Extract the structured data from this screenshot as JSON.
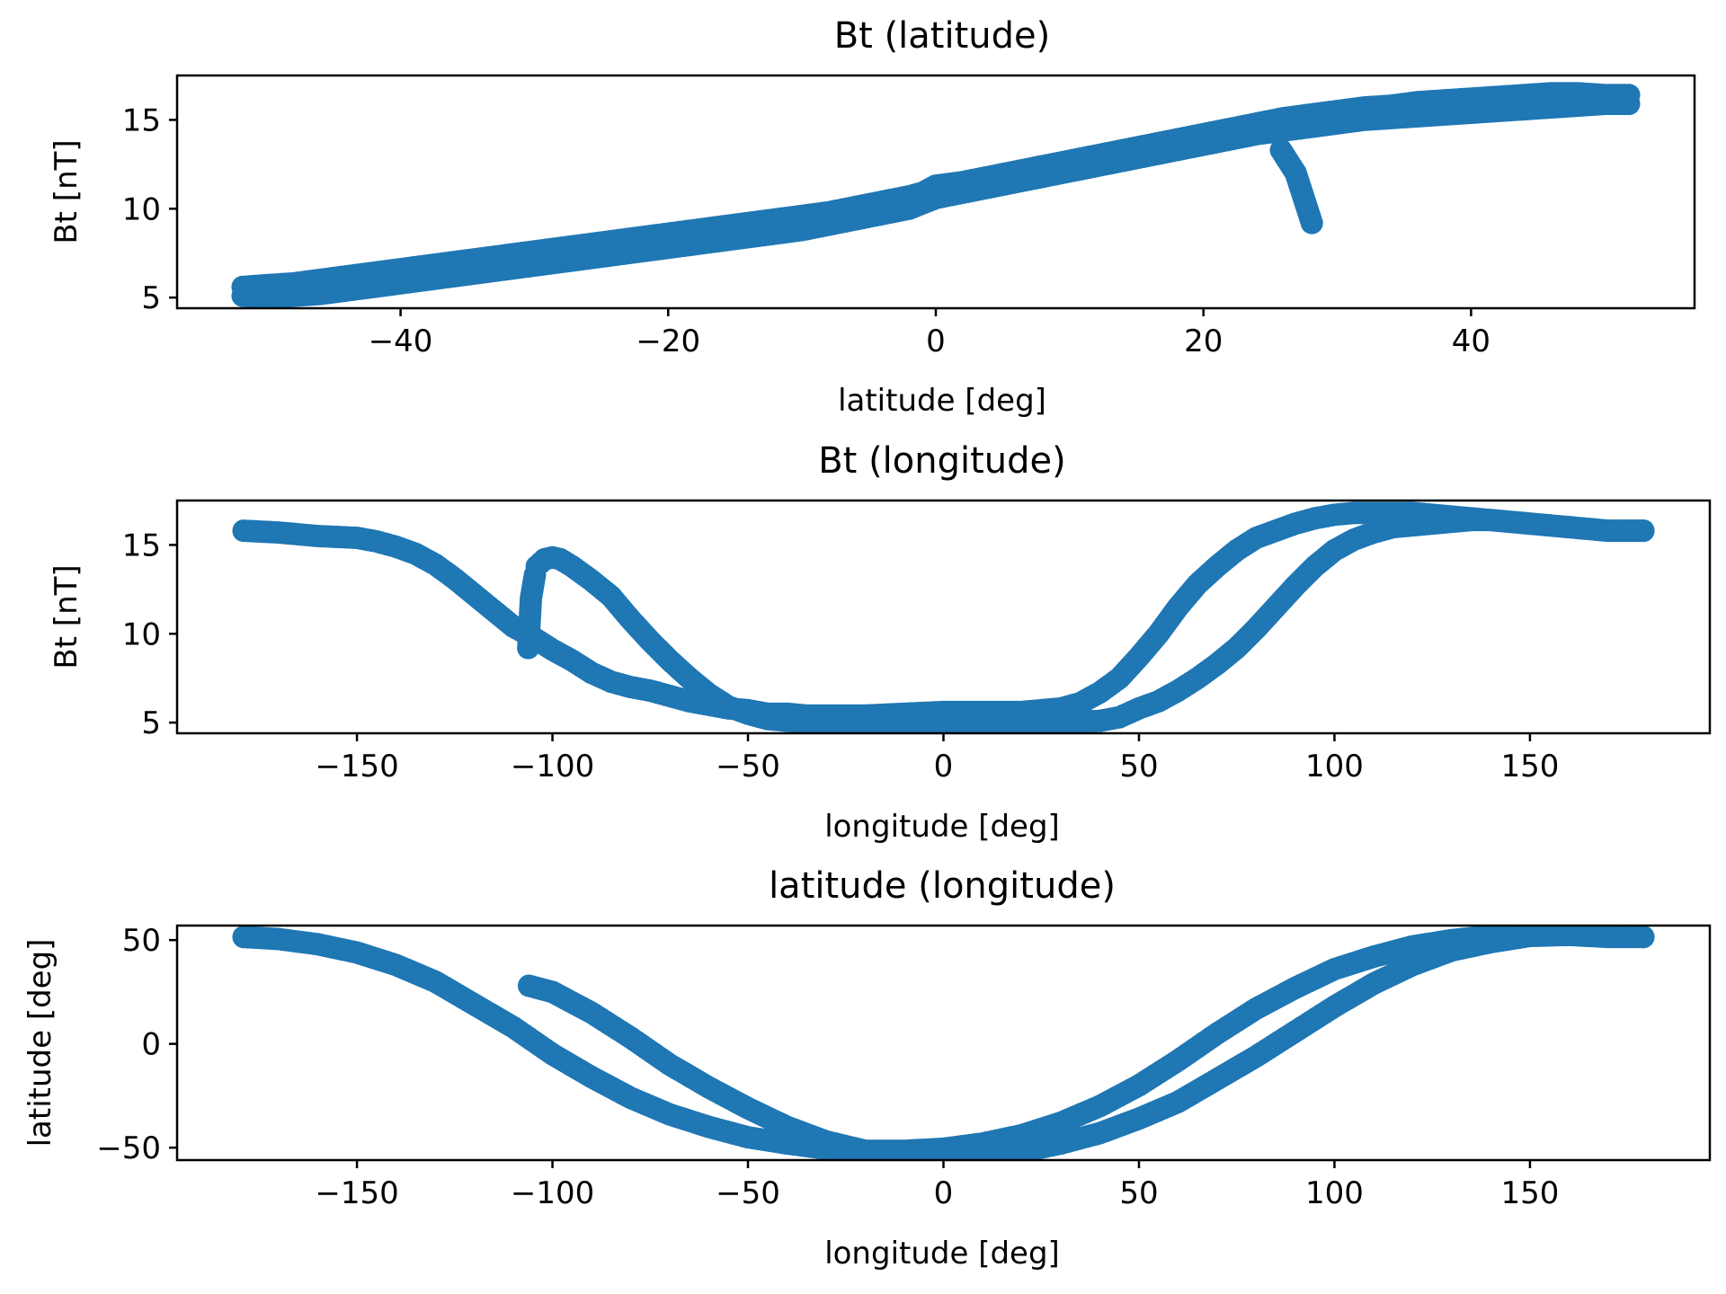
{
  "figure": {
    "marker_color": "#1f77b4"
  },
  "chart_data": [
    {
      "type": "scatter",
      "title": "Bt (latitude)",
      "xlabel": "latitude [deg]",
      "ylabel": "Bt [nT]",
      "xlim": [
        -56.7,
        56.7
      ],
      "ylim": [
        4.4,
        17.5
      ],
      "xticks": [
        -40,
        -20,
        0,
        20,
        40
      ],
      "yticks": [
        5,
        10,
        15
      ],
      "xtick_labels": [
        "−40",
        "−20",
        "0",
        "20",
        "40"
      ],
      "ytick_labels": [
        "5",
        "10",
        "15"
      ],
      "grid": false,
      "series": [
        {
          "x": [
            -51.8,
            -50,
            -48,
            -46,
            -44,
            -42,
            -40,
            -38,
            -36,
            -34,
            -32,
            -30,
            -28,
            -26,
            -24,
            -22,
            -20,
            -18,
            -16,
            -14,
            -12,
            -10,
            -8,
            -6,
            -4,
            -2,
            -1,
            0,
            2,
            4,
            6,
            8,
            10,
            12,
            14,
            16,
            18,
            20,
            22,
            24,
            26,
            28,
            30,
            32,
            34,
            36,
            38,
            40,
            42,
            44,
            46,
            48,
            50,
            51.8
          ],
          "y": [
            5.6,
            5.7,
            5.8,
            6.0,
            6.2,
            6.4,
            6.6,
            6.8,
            7.0,
            7.2,
            7.4,
            7.6,
            7.8,
            8.0,
            8.2,
            8.4,
            8.6,
            8.8,
            9.0,
            9.2,
            9.4,
            9.6,
            9.8,
            10.1,
            10.4,
            10.7,
            10.9,
            11.3,
            11.5,
            11.8,
            12.1,
            12.4,
            12.7,
            13.0,
            13.3,
            13.6,
            13.9,
            14.2,
            14.5,
            14.8,
            15.1,
            15.3,
            15.5,
            15.7,
            15.8,
            16.0,
            16.1,
            16.2,
            16.3,
            16.4,
            16.5,
            16.5,
            16.4,
            16.4
          ]
        },
        {
          "x": [
            -51.8,
            -50,
            -48,
            -46,
            -44,
            -42,
            -40,
            -38,
            -36,
            -34,
            -32,
            -30,
            -28,
            -26,
            -24,
            -22,
            -20,
            -18,
            -16,
            -14,
            -12,
            -10,
            -8,
            -6,
            -4,
            -2,
            0,
            2,
            4,
            6,
            8,
            10,
            12,
            14,
            16,
            18,
            20,
            22,
            24,
            26,
            28,
            30,
            32,
            34,
            36,
            38,
            40,
            42,
            44,
            46,
            48,
            50,
            51.8
          ],
          "y": [
            5.1,
            5.0,
            5.1,
            5.2,
            5.4,
            5.6,
            5.8,
            6.0,
            6.2,
            6.4,
            6.6,
            6.8,
            7.0,
            7.2,
            7.4,
            7.6,
            7.8,
            8.0,
            8.2,
            8.4,
            8.6,
            8.8,
            9.1,
            9.4,
            9.7,
            10.0,
            10.6,
            10.9,
            11.2,
            11.5,
            11.8,
            12.1,
            12.4,
            12.7,
            13.0,
            13.3,
            13.6,
            13.9,
            14.2,
            14.4,
            14.6,
            14.8,
            15.0,
            15.1,
            15.2,
            15.3,
            15.4,
            15.5,
            15.6,
            15.7,
            15.8,
            15.9,
            15.9
          ]
        },
        {
          "x": [
            25.8,
            26.9,
            28.1
          ],
          "y": [
            13.3,
            12.0,
            9.2
          ]
        }
      ]
    },
    {
      "type": "scatter",
      "title": "Bt (longitude)",
      "xlabel": "longitude [deg]",
      "ylabel": "Bt [nT]",
      "xlim": [
        -196,
        196
      ],
      "ylim": [
        4.4,
        17.5
      ],
      "xticks": [
        -150,
        -100,
        -50,
        0,
        50,
        100,
        150
      ],
      "yticks": [
        5,
        10,
        15
      ],
      "xtick_labels": [
        "−150",
        "−100",
        "−50",
        "0",
        "50",
        "100",
        "150"
      ],
      "ytick_labels": [
        "5",
        "10",
        "15"
      ],
      "grid": false,
      "series": [
        {
          "x": [
            -179,
            -170,
            -160,
            -150,
            -145,
            -140,
            -135,
            -130,
            -125,
            -120,
            -115,
            -110,
            -105,
            -100,
            -95,
            -90,
            -85,
            -80,
            -75,
            -70,
            -65,
            -60,
            -55,
            -50,
            -45,
            -40,
            -35,
            -30,
            -20,
            -10,
            0,
            10,
            20,
            30,
            35,
            40,
            45,
            50,
            55,
            60,
            65,
            70,
            75,
            80,
            85,
            90,
            95,
            100,
            105,
            110,
            115,
            120,
            125,
            130,
            135,
            140,
            150,
            160,
            170,
            179
          ],
          "y": [
            15.8,
            15.7,
            15.5,
            15.4,
            15.2,
            14.9,
            14.5,
            13.9,
            13.1,
            12.2,
            11.3,
            10.4,
            9.8,
            9.1,
            8.5,
            7.8,
            7.3,
            7.0,
            6.8,
            6.5,
            6.2,
            6.0,
            5.8,
            5.7,
            5.5,
            5.5,
            5.4,
            5.4,
            5.4,
            5.5,
            5.6,
            5.6,
            5.6,
            5.8,
            6.1,
            6.7,
            7.5,
            8.7,
            10.0,
            11.5,
            12.8,
            13.8,
            14.7,
            15.4,
            15.8,
            16.2,
            16.5,
            16.7,
            16.8,
            16.8,
            16.8,
            16.8,
            16.7,
            16.6,
            16.5,
            16.4,
            16.2,
            16.0,
            15.8,
            15.8
          ]
        },
        {
          "x": [
            -104,
            -102,
            -100,
            -98,
            -95,
            -90,
            -85,
            -80,
            -75,
            -70,
            -65,
            -60,
            -55,
            -50,
            -45,
            -40,
            -30,
            -20,
            -10,
            0,
            10,
            20,
            30,
            40,
            45,
            50,
            55,
            60,
            65,
            70,
            75,
            80,
            85,
            90,
            95,
            100,
            105,
            110,
            115,
            120,
            125,
            130,
            135,
            140,
            150,
            160,
            170,
            179
          ],
          "y": [
            13.8,
            14.2,
            14.3,
            14.2,
            13.8,
            13.0,
            12.1,
            10.8,
            9.6,
            8.5,
            7.5,
            6.6,
            5.9,
            5.5,
            5.2,
            5.1,
            5.0,
            4.9,
            4.9,
            4.9,
            4.9,
            4.9,
            5.0,
            5.1,
            5.3,
            5.8,
            6.2,
            6.8,
            7.5,
            8.3,
            9.2,
            10.3,
            11.5,
            12.7,
            13.8,
            14.7,
            15.3,
            15.7,
            16.0,
            16.1,
            16.2,
            16.3,
            16.4,
            16.4,
            16.2,
            16.0,
            15.8,
            15.8
          ]
        },
        {
          "x": [
            -104.5,
            -105.5,
            -106.2
          ],
          "y": [
            13.3,
            12.0,
            9.2
          ]
        }
      ]
    },
    {
      "type": "scatter",
      "title": "latitude (longitude)",
      "xlabel": "longitude [deg]",
      "ylabel": "latitude [deg]",
      "xlim": [
        -196,
        196
      ],
      "ylim": [
        -56,
        57
      ],
      "xticks": [
        -150,
        -100,
        -50,
        0,
        50,
        100,
        150
      ],
      "yticks": [
        -50,
        0,
        50
      ],
      "xtick_labels": [
        "−150",
        "−100",
        "−50",
        "0",
        "50",
        "100",
        "150"
      ],
      "ytick_labels": [
        "−50",
        "0",
        "50"
      ],
      "grid": false,
      "series": [
        {
          "x": [
            -179,
            -170,
            -160,
            -150,
            -140,
            -130,
            -120,
            -110,
            -100,
            -90,
            -80,
            -70,
            -60,
            -50,
            -40,
            -30,
            -20,
            -10,
            0,
            10,
            20,
            30,
            40,
            50,
            60,
            70,
            80,
            90,
            100,
            110,
            120,
            130,
            140,
            150,
            160,
            170,
            179
          ],
          "y": [
            51.5,
            50.5,
            48,
            44,
            38,
            30,
            19,
            8,
            -5,
            -16,
            -26,
            -34,
            -40,
            -45,
            -48,
            -50.5,
            -51.5,
            -51.5,
            -50.5,
            -48,
            -44,
            -38,
            -30,
            -20,
            -8,
            5,
            17,
            27,
            36,
            42,
            47,
            50,
            52,
            53,
            52.5,
            52,
            51.5
          ]
        },
        {
          "x": [
            -106,
            -100,
            -90,
            -80,
            -70,
            -60,
            -50,
            -40,
            -30,
            -20,
            -10,
            0,
            10,
            20,
            30,
            40,
            50,
            60,
            70,
            80,
            90,
            100,
            110,
            120,
            130,
            140,
            150,
            160,
            170,
            179
          ],
          "y": [
            28,
            25,
            15,
            3,
            -10,
            -21,
            -31,
            -40,
            -47,
            -51.5,
            -54,
            -54.5,
            -54,
            -52,
            -48,
            -43,
            -36,
            -28,
            -17,
            -6,
            6,
            18,
            29,
            38,
            45,
            49,
            52,
            52.5,
            51.5,
            51.5
          ]
        }
      ]
    }
  ]
}
